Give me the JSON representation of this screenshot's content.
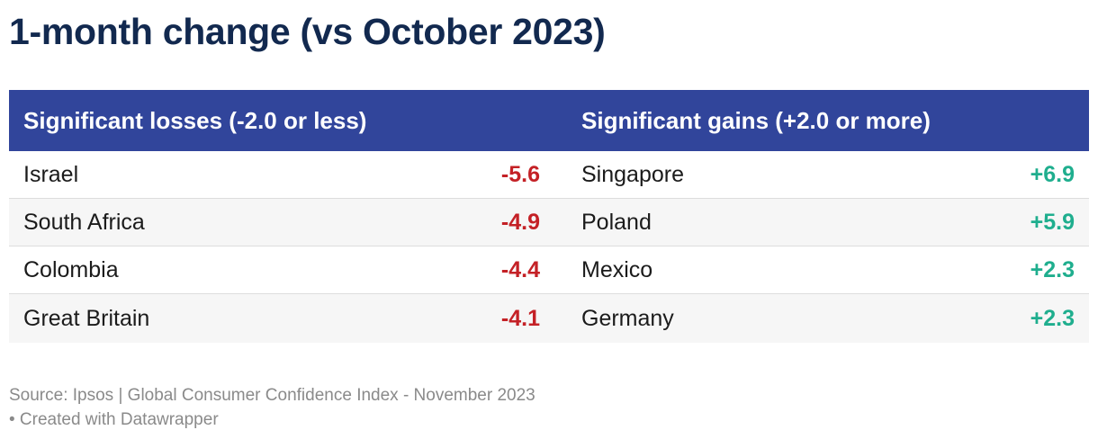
{
  "title": "1-month change (vs October 2023)",
  "chart_data": {
    "type": "table",
    "columns": [
      "Significant losses (-2.0 or less)",
      "Significant gains (+2.0 or more)"
    ],
    "losses": [
      {
        "country": "Israel",
        "value_label": "-5.6",
        "value": -5.6
      },
      {
        "country": "South Africa",
        "value_label": "-4.9",
        "value": -4.9
      },
      {
        "country": "Colombia",
        "value_label": "-4.4",
        "value": -4.4
      },
      {
        "country": "Great Britain",
        "value_label": "-4.1",
        "value": -4.1
      }
    ],
    "gains": [
      {
        "country": "Singapore",
        "value_label": "+6.9",
        "value": 6.9
      },
      {
        "country": "Poland",
        "value_label": "+5.9",
        "value": 5.9
      },
      {
        "country": "Mexico",
        "value_label": "+2.3",
        "value": 2.3
      },
      {
        "country": "Germany",
        "value_label": "+2.3",
        "value": 2.3
      }
    ],
    "colors": {
      "header_bg": "#31459b",
      "title": "#12294f",
      "loss": "#c42126",
      "gain": "#1fae8e"
    }
  },
  "footer": {
    "source": "Source: Ipsos | Global Consumer Confidence Index - November 2023",
    "credit": "• Created with Datawrapper"
  }
}
